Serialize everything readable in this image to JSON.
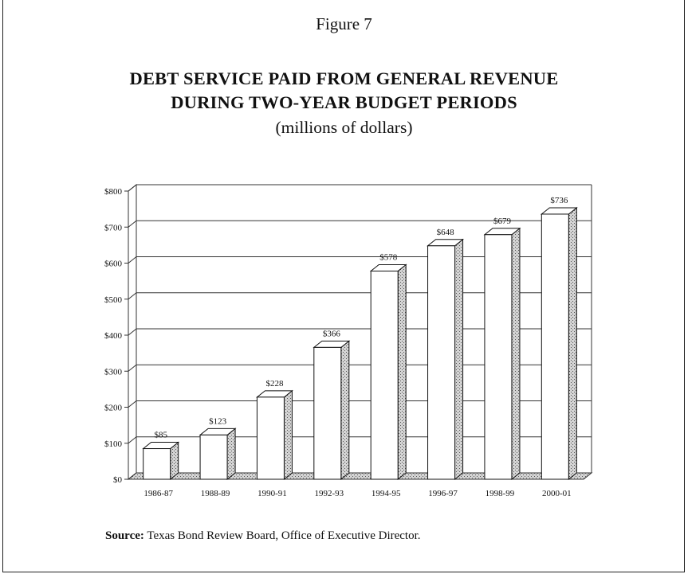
{
  "figure_label": "Figure 7",
  "source": {
    "label": "Source:",
    "text": "Texas Bond Review Board, Office of Executive Director."
  },
  "chart_data": {
    "type": "bar",
    "title": "DEBT SERVICE PAID FROM GENERAL REVENUE",
    "title_line2": "DURING TWO-YEAR BUDGET PERIODS",
    "subtitle": "(millions of dollars)",
    "xlabel": "",
    "ylabel": "",
    "categories": [
      "1986-87",
      "1988-89",
      "1990-91",
      "1992-93",
      "1994-95",
      "1996-97",
      "1998-99",
      "2000-01"
    ],
    "values": [
      85,
      123,
      228,
      366,
      578,
      648,
      679,
      736
    ],
    "data_labels": [
      "$85",
      "$123",
      "$228",
      "$366",
      "$578",
      "$648",
      "$679",
      "$736"
    ],
    "y_ticks": [
      0,
      100,
      200,
      300,
      400,
      500,
      600,
      700,
      800
    ],
    "y_tick_labels": [
      "$0",
      "$100",
      "$200",
      "$300",
      "$400",
      "$500",
      "$600",
      "$700",
      "$800"
    ],
    "ylim": [
      0,
      800
    ],
    "grid": true,
    "style": "3d",
    "colors": {
      "bar_front": "#ffffff",
      "bar_side": "#c8c8c8",
      "outline": "#111111",
      "grid": "#333333"
    }
  }
}
